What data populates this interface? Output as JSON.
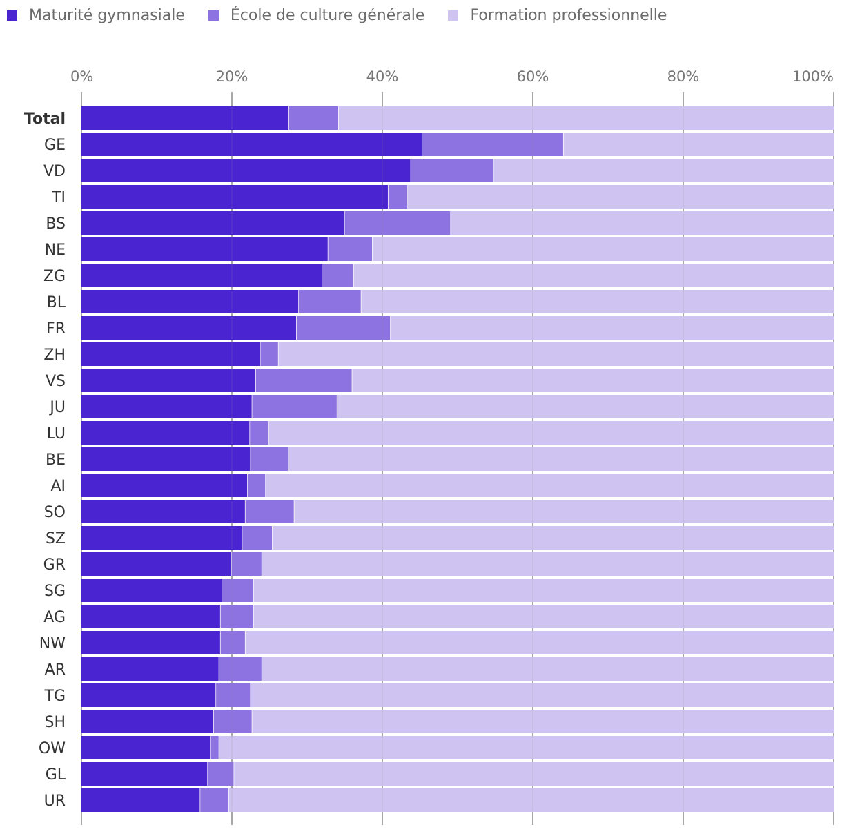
{
  "chart_data": {
    "type": "bar",
    "orientation": "horizontal",
    "stacked": true,
    "legend_position": "top-left",
    "grid": true,
    "xlim": [
      0,
      100
    ],
    "x_ticks": [
      "0%",
      "20%",
      "40%",
      "60%",
      "80%",
      "100%"
    ],
    "categories": [
      "Total",
      "GE",
      "VD",
      "TI",
      "BS",
      "NE",
      "ZG",
      "BL",
      "FR",
      "ZH",
      "VS",
      "JU",
      "LU",
      "BE",
      "AI",
      "SO",
      "SZ",
      "GR",
      "SG",
      "AG",
      "NW",
      "AR",
      "TG",
      "SH",
      "OW",
      "GL",
      "UR"
    ],
    "series": [
      {
        "name": "Maturité gymnasiale",
        "color": "#4b24d1",
        "values": [
          27.6,
          45.3,
          43.8,
          40.8,
          35.0,
          32.8,
          32.0,
          28.9,
          28.6,
          23.8,
          23.2,
          22.7,
          22.4,
          22.5,
          22.1,
          21.8,
          21.4,
          20.0,
          18.7,
          18.5,
          18.5,
          18.3,
          17.9,
          17.6,
          17.2,
          16.8,
          15.8
        ]
      },
      {
        "name": "École de culture générale",
        "color": "#8d72e1",
        "values": [
          6.6,
          18.8,
          11.0,
          2.6,
          14.1,
          5.9,
          4.2,
          8.3,
          12.5,
          2.4,
          12.8,
          11.3,
          2.5,
          5.0,
          2.4,
          6.5,
          4.0,
          4.0,
          4.2,
          4.4,
          3.3,
          5.7,
          4.6,
          5.1,
          1.1,
          3.5,
          3.8
        ]
      },
      {
        "name": "Formation professionnelle",
        "color": "#cec3f1",
        "values": [
          65.8,
          35.9,
          45.2,
          56.6,
          50.9,
          61.3,
          63.8,
          62.8,
          58.9,
          73.8,
          64.0,
          66.0,
          75.1,
          72.5,
          75.5,
          71.7,
          74.6,
          76.0,
          77.1,
          77.1,
          78.2,
          76.0,
          77.5,
          77.3,
          81.7,
          79.7,
          80.4
        ]
      }
    ]
  }
}
